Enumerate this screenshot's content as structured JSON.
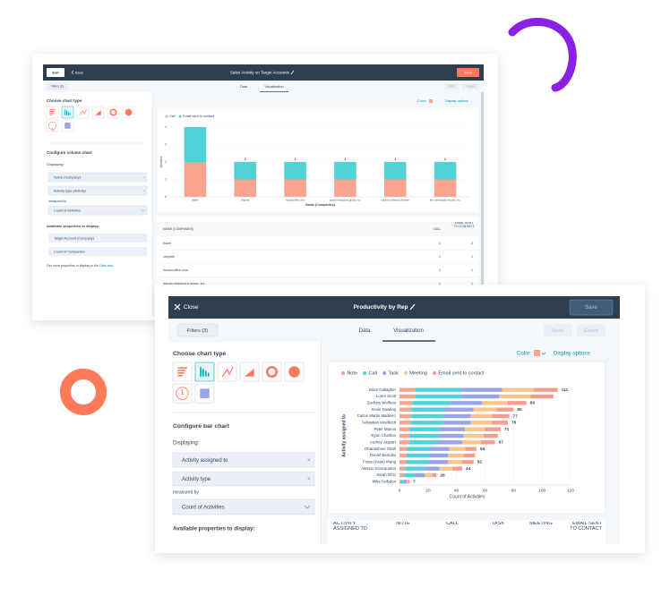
{
  "back_window": {
    "header": {
      "exit": "Exit",
      "back": "Back",
      "title": "Sales Activity on Target Accounts",
      "save": "Save"
    },
    "toolbar": {
      "filters": "Filters (2)",
      "tabs": [
        "Data",
        "Visualization"
      ],
      "undo": "Undo",
      "export": "Export"
    },
    "sidebar": {
      "choose_chart_type": "Choose chart type",
      "number_icon": "1",
      "configure": "Configure column chart",
      "displaying": "Displaying:",
      "fields": [
        "Name (Company)",
        "Activity type (Activity)"
      ],
      "measured_by": "measured by",
      "measure": "Count of Activities",
      "available": "Available properties to display:",
      "properties": [
        "Target Account (Company)",
        "Count of Companies"
      ],
      "more_text": "Get more properties to display in the",
      "more_link": "Data step."
    },
    "options": {
      "color": "Color:",
      "display_options": "Display options"
    },
    "table": {
      "headers": [
        "NAME (COMPANIES)",
        "CALL",
        "EMAIL SENT TO CONTACT"
      ],
      "rows": [
        [
          "blaze",
          2,
          2
        ],
        [
          "chipotle",
          1,
          1
        ],
        [
          "hautecoffee.com",
          1,
          1
        ],
        [
          "panda restaurant group, inc.",
          1,
          1
        ]
      ]
    }
  },
  "front_window": {
    "header": {
      "close": "Close",
      "title": "Productivity by Rep",
      "save": "Save"
    },
    "toolbar": {
      "filters": "Filters (3)",
      "tabs": [
        "Data",
        "Visualization"
      ],
      "undo": "Undo",
      "export": "Export"
    },
    "sidebar": {
      "choose_chart_type": "Choose chart type",
      "number_icon": "1",
      "configure": "Configure bar chart",
      "displaying": "Displaying:",
      "fields": [
        "Activity assigned to",
        "Activity type"
      ],
      "measured_by": "measured by",
      "measure": "Count of Activities",
      "available": "Available properties to display:"
    },
    "options": {
      "color": "Color:",
      "display_options": "Display options"
    },
    "table": {
      "headers": [
        "ACTIVITY ASSIGNED TO",
        "NOTE",
        "CALL",
        "TASK",
        "MEETING",
        "EMAIL SENT TO CONTACT"
      ]
    }
  },
  "chart_data": [
    {
      "type": "column",
      "x_label": "Name (Companies)",
      "y_label": "Activities",
      "categories": [
        "blaze",
        "chipotle",
        "hautecoffee.com",
        "panda restaurant group, inc.",
        "tailored turtleneck kitchen",
        "the cheesecake factory, inc."
      ],
      "series": [
        {
          "name": "Call",
          "color": "#f8a48f",
          "values": [
            2,
            1,
            1,
            1,
            1,
            1
          ]
        },
        {
          "name": "Email sent to contact",
          "color": "#4fd3d9",
          "values": [
            2,
            1,
            1,
            1,
            1,
            1
          ]
        }
      ],
      "total_labels": [
        null,
        2,
        2,
        2,
        2,
        2
      ],
      "ylim": [
        0,
        4
      ],
      "yticks": [
        0,
        1,
        2,
        3,
        4
      ],
      "grid": true,
      "stacked": true,
      "legend": "top-left"
    },
    {
      "type": "bar",
      "x_label": "Count of Activities",
      "y_label": "Activity assigned to",
      "categories": [
        "Brian Gallagher",
        "Loren Scott",
        "Zachary Wolfson",
        "Kevin Dowling",
        "Carlos Martin Martinez",
        "Sebastian Moellerdt",
        "Peter Manos",
        "Ryan Charlton",
        "Audrey Jaspart",
        "Dhanashree Shah",
        "Daniel Bertolini",
        "Fiona (Yuan) Wang",
        "Alessio Sciacquatori",
        "Sarah McG",
        "Mike Holbdon"
      ],
      "series": [
        {
          "name": "Note",
          "color": "#f8a48f",
          "values": [
            11,
            11,
            9,
            8,
            8,
            8,
            7,
            7,
            7,
            5,
            5,
            5,
            4,
            3,
            1
          ]
        },
        {
          "name": "Call",
          "color": "#4fd3d9",
          "values": [
            33,
            32,
            27,
            24,
            23,
            23,
            21,
            21,
            20,
            16,
            16,
            16,
            13,
            8,
            2
          ]
        },
        {
          "name": "Task",
          "color": "#9aa4e8",
          "values": [
            28,
            27,
            22,
            20,
            19,
            19,
            18,
            17,
            17,
            14,
            13,
            13,
            11,
            7,
            2
          ]
        },
        {
          "name": "Meeting",
          "color": "#fbc58c",
          "values": [
            22,
            22,
            18,
            16,
            15,
            15,
            14,
            14,
            13,
            11,
            11,
            10,
            9,
            5,
            1
          ]
        },
        {
          "name": "Email sent to contact",
          "color": "#f59e8f",
          "values": [
            17,
            16,
            13,
            12,
            12,
            11,
            11,
            10,
            10,
            8,
            8,
            8,
            7,
            3,
            1
          ]
        }
      ],
      "total_labels": [
        111,
        null,
        89,
        80,
        77,
        76,
        71,
        null,
        67,
        54,
        null,
        52,
        44,
        26,
        7
      ],
      "xlim": [
        0,
        120
      ],
      "xticks": [
        0,
        20,
        40,
        60,
        80,
        100,
        120
      ],
      "grid": true,
      "stacked": true,
      "legend": "top-left"
    }
  ]
}
